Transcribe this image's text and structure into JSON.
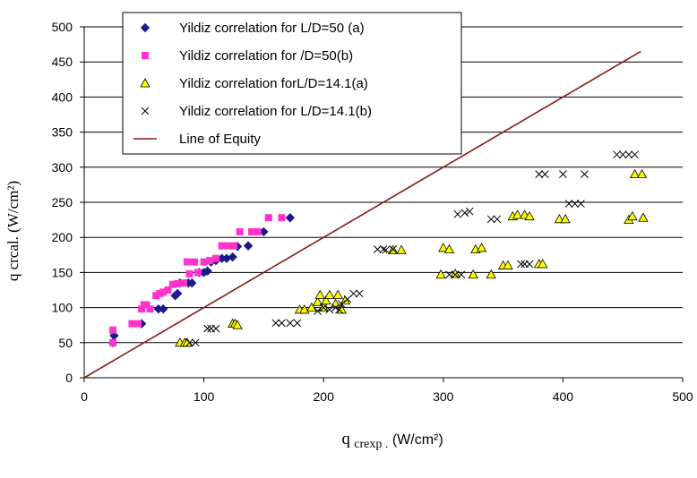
{
  "chart_data": {
    "type": "scatter",
    "title": "",
    "xlabel": "q crexp .(W/cm²)",
    "xlabel_parts": {
      "main": "q",
      "sub": "crexp .",
      "unit": "(W/cm²)"
    },
    "ylabel": "q crcal. (W/cm²)",
    "xlim": [
      0,
      500
    ],
    "ylim": [
      0,
      500
    ],
    "x_ticks": [
      0,
      100,
      200,
      300,
      400,
      500
    ],
    "y_ticks": [
      0,
      50,
      100,
      150,
      200,
      250,
      300,
      350,
      400,
      450,
      500
    ],
    "grid": "horizontal",
    "legend_position": "top-left",
    "series": [
      {
        "name": "Yildiz correlation for L/D=50 (a)",
        "marker": "diamond",
        "color": "#1a1a8c",
        "points": [
          [
            24,
            50
          ],
          [
            25,
            60
          ],
          [
            48,
            77
          ],
          [
            62,
            98
          ],
          [
            66,
            98
          ],
          [
            76,
            117
          ],
          [
            78,
            120
          ],
          [
            80,
            135
          ],
          [
            87,
            135
          ],
          [
            90,
            135
          ],
          [
            96,
            150
          ],
          [
            100,
            150
          ],
          [
            103,
            152
          ],
          [
            106,
            165
          ],
          [
            110,
            167
          ],
          [
            115,
            170
          ],
          [
            119,
            170
          ],
          [
            124,
            172
          ],
          [
            128,
            187
          ],
          [
            137,
            188
          ],
          [
            150,
            208
          ],
          [
            172,
            228
          ]
        ]
      },
      {
        "name": "Yildiz correlation for /D=50(b)",
        "marker": "square",
        "color": "#ff33cc",
        "points": [
          [
            24,
            50
          ],
          [
            24,
            68
          ],
          [
            40,
            77
          ],
          [
            45,
            77
          ],
          [
            48,
            98
          ],
          [
            50,
            104
          ],
          [
            52,
            104
          ],
          [
            55,
            98
          ],
          [
            60,
            117
          ],
          [
            63,
            120
          ],
          [
            66,
            122
          ],
          [
            70,
            125
          ],
          [
            74,
            133
          ],
          [
            78,
            134
          ],
          [
            83,
            135
          ],
          [
            88,
            148
          ],
          [
            95,
            150
          ],
          [
            86,
            165
          ],
          [
            92,
            165
          ],
          [
            100,
            165
          ],
          [
            105,
            167
          ],
          [
            110,
            170
          ],
          [
            115,
            188
          ],
          [
            120,
            188
          ],
          [
            125,
            188
          ],
          [
            130,
            208
          ],
          [
            140,
            208
          ],
          [
            145,
            208
          ],
          [
            154,
            228
          ],
          [
            165,
            228
          ]
        ]
      },
      {
        "name": "Yildiz correlation forL/D=14.1(a)",
        "marker": "triangle",
        "color": "#ffff00",
        "points": [
          [
            80,
            50
          ],
          [
            84,
            50
          ],
          [
            86,
            50
          ],
          [
            124,
            77
          ],
          [
            126,
            77
          ],
          [
            128,
            75
          ],
          [
            180,
            97
          ],
          [
            184,
            97
          ],
          [
            190,
            100
          ],
          [
            195,
            108
          ],
          [
            197,
            118
          ],
          [
            200,
            100
          ],
          [
            202,
            110
          ],
          [
            205,
            118
          ],
          [
            210,
            105
          ],
          [
            212,
            118
          ],
          [
            215,
            97
          ],
          [
            218,
            110
          ],
          [
            258,
            182
          ],
          [
            265,
            182
          ],
          [
            298,
            147
          ],
          [
            300,
            185
          ],
          [
            305,
            183
          ],
          [
            310,
            148
          ],
          [
            325,
            147
          ],
          [
            327,
            183
          ],
          [
            332,
            185
          ],
          [
            340,
            147
          ],
          [
            350,
            160
          ],
          [
            354,
            160
          ],
          [
            358,
            230
          ],
          [
            362,
            232
          ],
          [
            368,
            232
          ],
          [
            372,
            230
          ],
          [
            380,
            162
          ],
          [
            383,
            162
          ],
          [
            397,
            226
          ],
          [
            402,
            226
          ],
          [
            455,
            225
          ],
          [
            458,
            230
          ],
          [
            460,
            290
          ],
          [
            466,
            290
          ],
          [
            467,
            228
          ]
        ]
      },
      {
        "name": "Yildiz correlation for L/D=14.1(b)",
        "marker": "x",
        "color": "#000000",
        "points": [
          [
            88,
            50
          ],
          [
            93,
            50
          ],
          [
            103,
            70
          ],
          [
            106,
            70
          ],
          [
            110,
            70
          ],
          [
            160,
            78
          ],
          [
            165,
            78
          ],
          [
            172,
            78
          ],
          [
            178,
            78
          ],
          [
            195,
            95
          ],
          [
            200,
            100
          ],
          [
            205,
            97
          ],
          [
            210,
            100
          ],
          [
            213,
            97
          ],
          [
            215,
            105
          ],
          [
            220,
            112
          ],
          [
            225,
            120
          ],
          [
            230,
            120
          ],
          [
            245,
            183
          ],
          [
            250,
            183
          ],
          [
            252,
            182
          ],
          [
            258,
            183
          ],
          [
            305,
            147
          ],
          [
            310,
            147
          ],
          [
            315,
            147
          ],
          [
            312,
            233
          ],
          [
            318,
            235
          ],
          [
            322,
            237
          ],
          [
            340,
            226
          ],
          [
            345,
            226
          ],
          [
            365,
            162
          ],
          [
            368,
            162
          ],
          [
            372,
            162
          ],
          [
            380,
            290
          ],
          [
            385,
            290
          ],
          [
            400,
            290
          ],
          [
            405,
            248
          ],
          [
            410,
            248
          ],
          [
            415,
            248
          ],
          [
            418,
            290
          ],
          [
            445,
            318
          ],
          [
            450,
            318
          ],
          [
            455,
            318
          ],
          [
            460,
            318
          ]
        ]
      },
      {
        "name": "Line of Equity",
        "marker": "line",
        "color": "#8b1a1a",
        "points": [
          [
            0,
            0
          ],
          [
            465,
            465
          ]
        ]
      }
    ]
  }
}
